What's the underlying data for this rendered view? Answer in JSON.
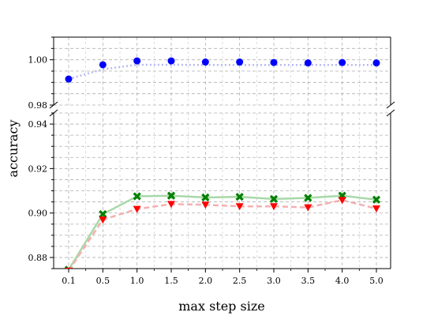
{
  "chart_data": {
    "type": "line",
    "xlabel": "max step size",
    "ylabel": "accuracy",
    "x": [
      0.1,
      0.5,
      1.0,
      1.5,
      2.0,
      2.5,
      3.0,
      3.5,
      4.0,
      5.0
    ],
    "x_tick_labels": [
      "0.1",
      "0.5",
      "1.0",
      "1.5",
      "2.0",
      "2.5",
      "3.0",
      "3.5",
      "4.0",
      "5.0"
    ],
    "axis_breaks": [
      {
        "ylim": [
          0.98,
          1.01
        ],
        "ticks": [
          "0.98",
          "1.00"
        ]
      },
      {
        "ylim": [
          0.875,
          0.945
        ],
        "ticks": [
          "0.88",
          "0.90",
          "0.92",
          "0.94"
        ]
      }
    ],
    "grid": true,
    "series": [
      {
        "panel": "top",
        "marker": "circle",
        "line_style": "dotted",
        "color": "#0000ff",
        "line_color": "#b8b8f0",
        "values": [
          0.9915,
          0.9978,
          0.9995,
          0.9995,
          0.999,
          0.999,
          0.9988,
          0.9986,
          0.9988,
          0.9986
        ],
        "line_values": [
          0.9915,
          0.9958,
          0.9978,
          0.9978,
          0.9977,
          0.9977,
          0.9977,
          0.9977,
          0.9977,
          0.9977
        ]
      },
      {
        "panel": "bottom",
        "marker": "x",
        "line_style": "solid",
        "color": "#008000",
        "line_color": "#a8d8a8",
        "values": [
          0.8745,
          0.8995,
          0.9075,
          0.9078,
          0.907,
          0.9073,
          0.9063,
          0.9068,
          0.9078,
          0.906
        ]
      },
      {
        "panel": "bottom",
        "marker": "triangle-down",
        "line_style": "dashed",
        "color": "#ff0000",
        "line_color": "#f4b0b0",
        "values": [
          0.874,
          0.897,
          0.9018,
          0.904,
          0.9037,
          0.903,
          0.903,
          0.9025,
          0.9058,
          0.902
        ]
      }
    ]
  }
}
